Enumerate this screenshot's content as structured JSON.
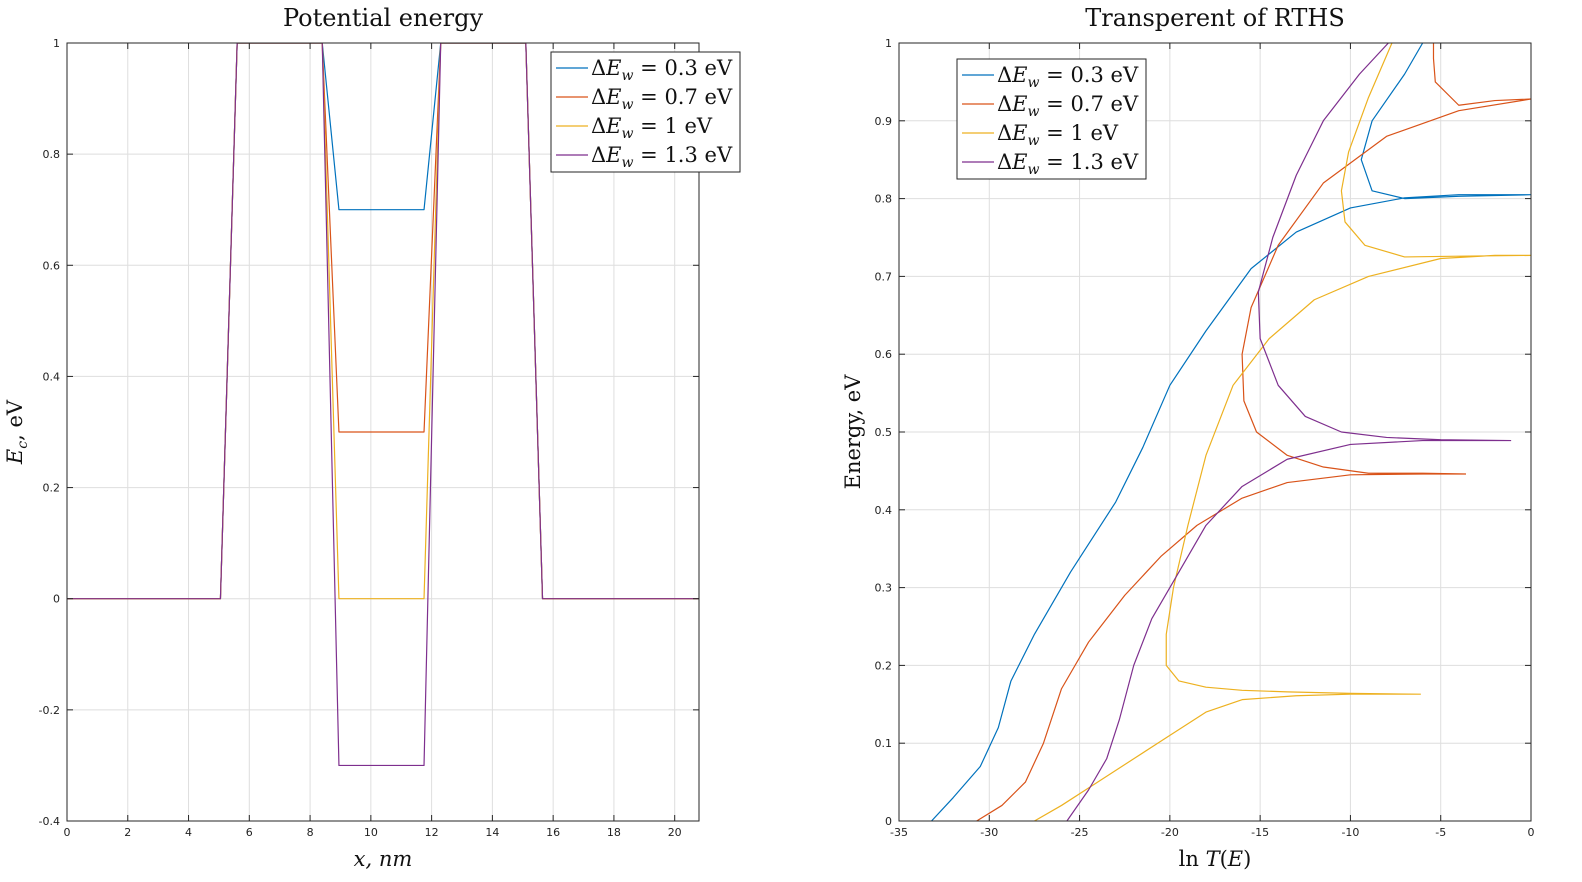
{
  "chart_data": [
    {
      "type": "line",
      "title": "Potential energy",
      "xlabel": "x, nm",
      "ylabel": "E_c, eV",
      "xlim": [
        0,
        20.8
      ],
      "ylim": [
        -0.4,
        1
      ],
      "xticks": [
        "0",
        "2",
        "4",
        "6",
        "8",
        "10",
        "12",
        "14",
        "16",
        "18",
        "20"
      ],
      "yticks": [
        "-0.4",
        "-0.2",
        "0",
        "0.2",
        "0.4",
        "0.6",
        "0.8",
        "1"
      ],
      "grid": true,
      "legend_position": "top-right",
      "series": [
        {
          "name": "ΔE_w = 0.3 eV",
          "color": "#0072BD",
          "x": [
            0,
            5.05,
            5.6,
            8.4,
            8.95,
            11.75,
            12.3,
            15.1,
            15.65,
            20.8
          ],
          "y": [
            0,
            0,
            1,
            1,
            0.7,
            0.7,
            1,
            1,
            0,
            0
          ]
        },
        {
          "name": "ΔE_w = 0.7 eV",
          "color": "#D95319",
          "x": [
            0,
            5.05,
            5.6,
            8.4,
            8.95,
            11.75,
            12.3,
            15.1,
            15.65,
            20.8
          ],
          "y": [
            0,
            0,
            1,
            1,
            0.3,
            0.3,
            1,
            1,
            0,
            0
          ]
        },
        {
          "name": "ΔE_w = 1 eV",
          "color": "#EDB120",
          "x": [
            0,
            5.05,
            5.6,
            8.4,
            8.95,
            11.75,
            12.3,
            15.1,
            15.65,
            20.8
          ],
          "y": [
            0,
            0,
            1,
            1,
            0,
            0,
            1,
            1,
            0,
            0
          ]
        },
        {
          "name": "ΔE_w = 1.3 eV",
          "color": "#7E2F8E",
          "x": [
            0,
            5.05,
            5.6,
            8.4,
            8.95,
            11.75,
            12.3,
            15.1,
            15.65,
            20.8
          ],
          "y": [
            0,
            0,
            1,
            1,
            -0.3,
            -0.3,
            1,
            1,
            0,
            0
          ]
        }
      ]
    },
    {
      "type": "line",
      "title": "Transperent of RTHS",
      "xlabel": "ln T(E)",
      "ylabel": "Energy, eV",
      "xlim": [
        -35,
        0
      ],
      "ylim": [
        0,
        1
      ],
      "xticks": [
        "-35",
        "-30",
        "-25",
        "-20",
        "-15",
        "-10",
        "-5",
        "0"
      ],
      "yticks": [
        "0",
        "0.1",
        "0.2",
        "0.3",
        "0.4",
        "0.5",
        "0.6",
        "0.7",
        "0.8",
        "0.9",
        "1"
      ],
      "grid": true,
      "legend_position": "top-left",
      "series": [
        {
          "name": "ΔE_w = 0.3 eV",
          "color": "#0072BD",
          "points": [
            [
              -33.2,
              0
            ],
            [
              -32,
              0.03
            ],
            [
              -30.5,
              0.07
            ],
            [
              -29.5,
              0.12
            ],
            [
              -28.8,
              0.18
            ],
            [
              -27.5,
              0.24
            ],
            [
              -25.5,
              0.32
            ],
            [
              -23,
              0.41
            ],
            [
              -21.5,
              0.48
            ],
            [
              -20,
              0.56
            ],
            [
              -18,
              0.63
            ],
            [
              -15.5,
              0.71
            ],
            [
              -13,
              0.757
            ],
            [
              -10,
              0.788
            ],
            [
              -7,
              0.801
            ],
            [
              -4,
              0.805
            ],
            [
              0,
              0.805
            ],
            [
              null,
              null
            ],
            [
              0,
              0.805
            ],
            [
              -4,
              0.803
            ],
            [
              -7,
              0.8
            ],
            [
              -8.8,
              0.81
            ],
            [
              -9.4,
              0.85
            ],
            [
              -8.8,
              0.9
            ],
            [
              -7,
              0.96
            ],
            [
              -6,
              1.0
            ]
          ]
        },
        {
          "name": "ΔE_w = 0.7 eV",
          "color": "#D95319",
          "points": [
            [
              -30.7,
              0
            ],
            [
              -29.3,
              0.02
            ],
            [
              -28,
              0.05
            ],
            [
              -27,
              0.1
            ],
            [
              -26,
              0.17
            ],
            [
              -24.5,
              0.23
            ],
            [
              -22.5,
              0.29
            ],
            [
              -20.5,
              0.34
            ],
            [
              -18.5,
              0.38
            ],
            [
              -16,
              0.415
            ],
            [
              -13.5,
              0.435
            ],
            [
              -10,
              0.445
            ],
            [
              -6,
              0.446
            ],
            [
              -3.6,
              0.446
            ],
            [
              null,
              null
            ],
            [
              -3.6,
              0.446
            ],
            [
              -6,
              0.447
            ],
            [
              -9,
              0.447
            ],
            [
              -11.5,
              0.455
            ],
            [
              -13.5,
              0.47
            ],
            [
              -15.2,
              0.5
            ],
            [
              -15.9,
              0.54
            ],
            [
              -16,
              0.6
            ],
            [
              -15.5,
              0.66
            ],
            [
              -14,
              0.74
            ],
            [
              -11.5,
              0.82
            ],
            [
              -8,
              0.88
            ],
            [
              -4,
              0.913
            ],
            [
              0,
              0.928
            ],
            [
              null,
              null
            ],
            [
              0,
              0.928
            ],
            [
              -2,
              0.926
            ],
            [
              -4,
              0.92
            ],
            [
              -5.3,
              0.95
            ],
            [
              -5.4,
              0.98
            ],
            [
              -5.4,
              1.0
            ]
          ]
        },
        {
          "name": "ΔE_w = 1 eV",
          "color": "#EDB120",
          "points": [
            [
              -27.5,
              0
            ],
            [
              -26,
              0.02
            ],
            [
              -24,
              0.05
            ],
            [
              -22,
              0.08
            ],
            [
              -20,
              0.11
            ],
            [
              -18,
              0.14
            ],
            [
              -16,
              0.156
            ],
            [
              -13,
              0.161
            ],
            [
              -10,
              0.163
            ],
            [
              -6.1,
              0.163
            ],
            [
              null,
              null
            ],
            [
              -6.1,
              0.163
            ],
            [
              -10,
              0.164
            ],
            [
              -13.5,
              0.166
            ],
            [
              -16,
              0.168
            ],
            [
              -18,
              0.172
            ],
            [
              -19.5,
              0.18
            ],
            [
              -20.2,
              0.2
            ],
            [
              -20.2,
              0.24
            ],
            [
              -19.8,
              0.3
            ],
            [
              -19,
              0.38
            ],
            [
              -18,
              0.47
            ],
            [
              -16.5,
              0.56
            ],
            [
              -14.5,
              0.62
            ],
            [
              -12,
              0.67
            ],
            [
              -9,
              0.7
            ],
            [
              -5,
              0.723
            ],
            [
              -2,
              0.727
            ],
            [
              0,
              0.727
            ],
            [
              null,
              null
            ],
            [
              0,
              0.727
            ],
            [
              -4,
              0.726
            ],
            [
              -7,
              0.725
            ],
            [
              -9.2,
              0.74
            ],
            [
              -10.3,
              0.77
            ],
            [
              -10.5,
              0.81
            ],
            [
              -10.1,
              0.86
            ],
            [
              -9,
              0.93
            ],
            [
              -7.7,
              1.0
            ]
          ]
        },
        {
          "name": "ΔE_w = 1.3 eV",
          "color": "#7E2F8E",
          "points": [
            [
              -25.7,
              0
            ],
            [
              -24.5,
              0.04
            ],
            [
              -23.5,
              0.08
            ],
            [
              -22.8,
              0.13
            ],
            [
              -22,
              0.2
            ],
            [
              -21,
              0.26
            ],
            [
              -19.5,
              0.32
            ],
            [
              -18,
              0.38
            ],
            [
              -16,
              0.43
            ],
            [
              -13.5,
              0.465
            ],
            [
              -10,
              0.484
            ],
            [
              -6,
              0.489
            ],
            [
              -1.1,
              0.489
            ],
            [
              null,
              null
            ],
            [
              -1.1,
              0.489
            ],
            [
              -5,
              0.49
            ],
            [
              -8,
              0.493
            ],
            [
              -10.5,
              0.5
            ],
            [
              -12.5,
              0.52
            ],
            [
              -14,
              0.56
            ],
            [
              -15,
              0.62
            ],
            [
              -15.1,
              0.68
            ],
            [
              -14.3,
              0.75
            ],
            [
              -13,
              0.83
            ],
            [
              -11.5,
              0.9
            ],
            [
              -9.5,
              0.96
            ],
            [
              -7.9,
              1.0
            ]
          ]
        }
      ]
    }
  ]
}
